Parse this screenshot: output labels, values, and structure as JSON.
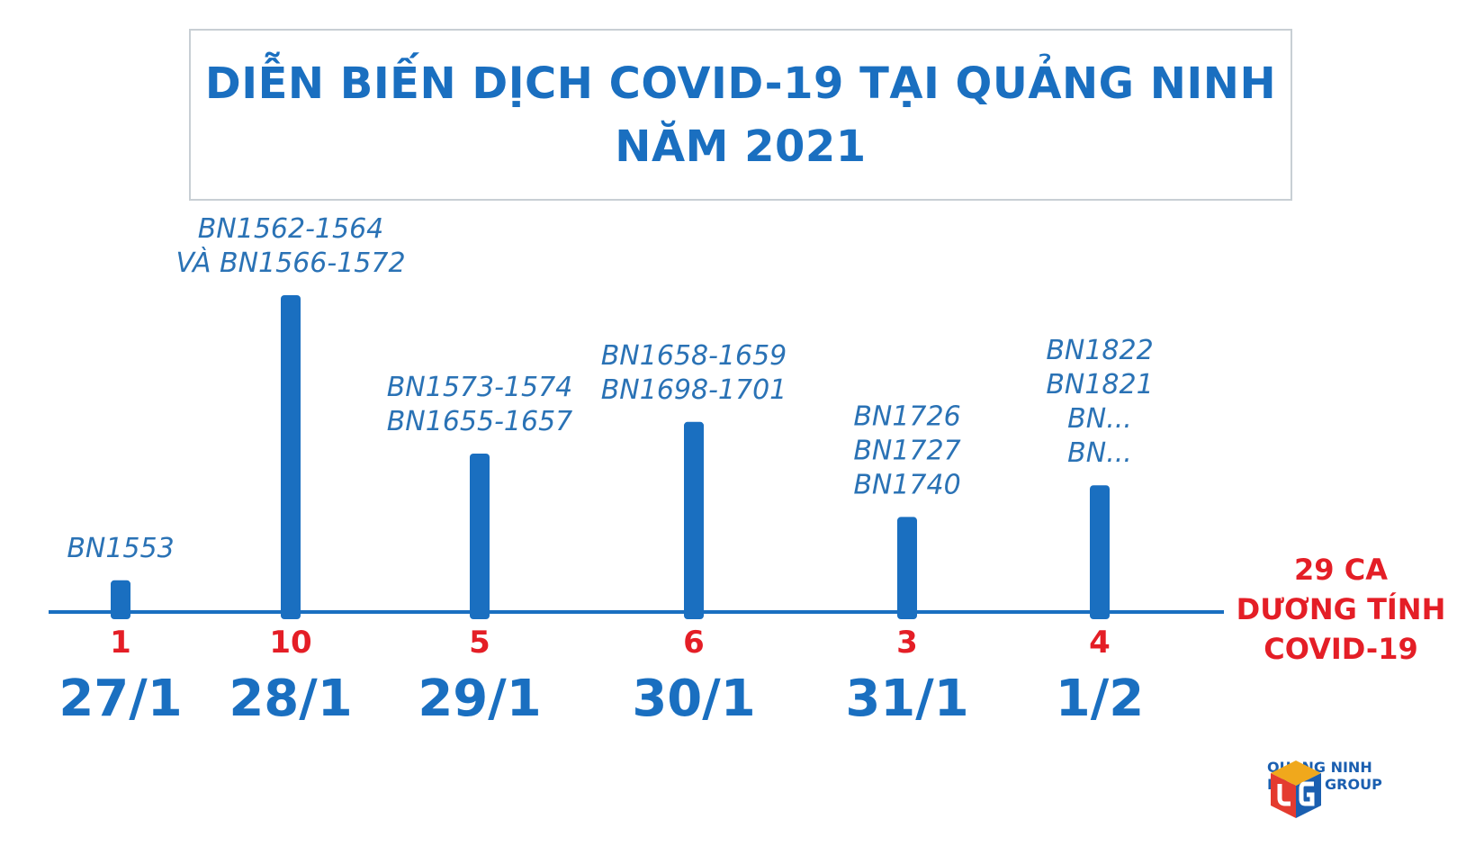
{
  "title": {
    "line1": "DIỄN BIẾN DỊCH COVID-19 TẠI QUẢNG NINH",
    "line2": "NĂM 2021"
  },
  "colors": {
    "accent": "#1a6fc0",
    "bar": "#1a6fc0",
    "count": "#e41e26",
    "patient_label": "#2a72b5"
  },
  "total": {
    "lines": [
      "29 CA",
      "DƯƠNG TÍNH",
      "COVID-19"
    ]
  },
  "logo": {
    "line1": "QUANG NINH",
    "line2": "MEDIA GROUP"
  },
  "chart_data": {
    "type": "bar",
    "categories": [
      "27/1",
      "28/1",
      "29/1",
      "30/1",
      "31/1",
      "1/2"
    ],
    "values": [
      1,
      10,
      5,
      6,
      3,
      4
    ],
    "annotations": [
      [
        "BN1553"
      ],
      [
        "BN1562-1564",
        "VÀ  BN1566-1572"
      ],
      [
        "BN1573-1574",
        "BN1655-1657"
      ],
      [
        "BN1658-1659",
        "BN1698-1701"
      ],
      [
        "BN1726",
        "BN1727",
        "BN1740"
      ],
      [
        "BN1822",
        "BN1821",
        "BN...",
        "BN..."
      ]
    ],
    "total": 29,
    "ylim": [
      0,
      10
    ],
    "grid": false,
    "legend": "none"
  }
}
